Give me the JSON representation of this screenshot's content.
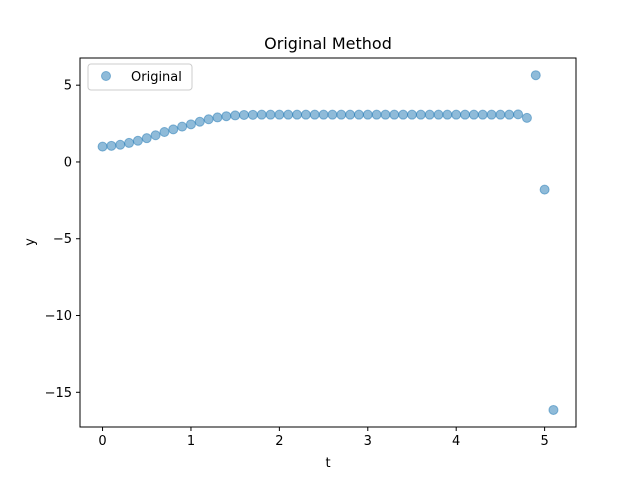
{
  "chart_data": {
    "type": "scatter",
    "title": "Original Method",
    "xlabel": "t",
    "ylabel": "y",
    "xlim": [
      -0.255,
      5.355
    ],
    "ylim": [
      -17.26,
      6.77
    ],
    "xticks": [
      0,
      1,
      2,
      3,
      4,
      5
    ],
    "yticks": [
      -15,
      -10,
      -5,
      0,
      5
    ],
    "xtick_labels": [
      "0",
      "1",
      "2",
      "3",
      "4",
      "5"
    ],
    "ytick_labels": [
      "−15",
      "−10",
      "−5",
      "0",
      "5"
    ],
    "grid": false,
    "legend": {
      "position": "top-left",
      "entries": [
        "Original"
      ]
    },
    "series": [
      {
        "name": "Original",
        "color": "#1f77b4",
        "alpha": 0.5,
        "x": [
          0,
          0.1,
          0.2,
          0.3,
          0.4,
          0.5,
          0.6,
          0.7,
          0.8,
          0.9,
          1.0,
          1.1,
          1.2,
          1.3,
          1.4,
          1.5,
          1.6,
          1.7,
          1.8,
          1.9,
          2.0,
          2.1,
          2.2,
          2.3,
          2.4,
          2.5,
          2.6,
          2.7,
          2.8,
          2.9,
          3.0,
          3.1,
          3.2,
          3.3,
          3.4,
          3.5,
          3.6,
          3.7,
          3.8,
          3.9,
          4.0,
          4.1,
          4.2,
          4.3,
          4.4,
          4.5,
          4.6,
          4.7,
          4.8,
          4.9,
          5.0,
          5.1
        ],
        "y": [
          1.0,
          1.05,
          1.12,
          1.24,
          1.38,
          1.55,
          1.74,
          1.95,
          2.12,
          2.3,
          2.45,
          2.62,
          2.78,
          2.9,
          2.98,
          3.03,
          3.06,
          3.07,
          3.08,
          3.08,
          3.08,
          3.08,
          3.08,
          3.08,
          3.08,
          3.08,
          3.08,
          3.08,
          3.08,
          3.08,
          3.08,
          3.08,
          3.08,
          3.08,
          3.08,
          3.08,
          3.08,
          3.08,
          3.08,
          3.08,
          3.08,
          3.08,
          3.08,
          3.08,
          3.08,
          3.08,
          3.08,
          3.1,
          2.87,
          5.65,
          -1.8,
          -16.15
        ]
      }
    ]
  }
}
